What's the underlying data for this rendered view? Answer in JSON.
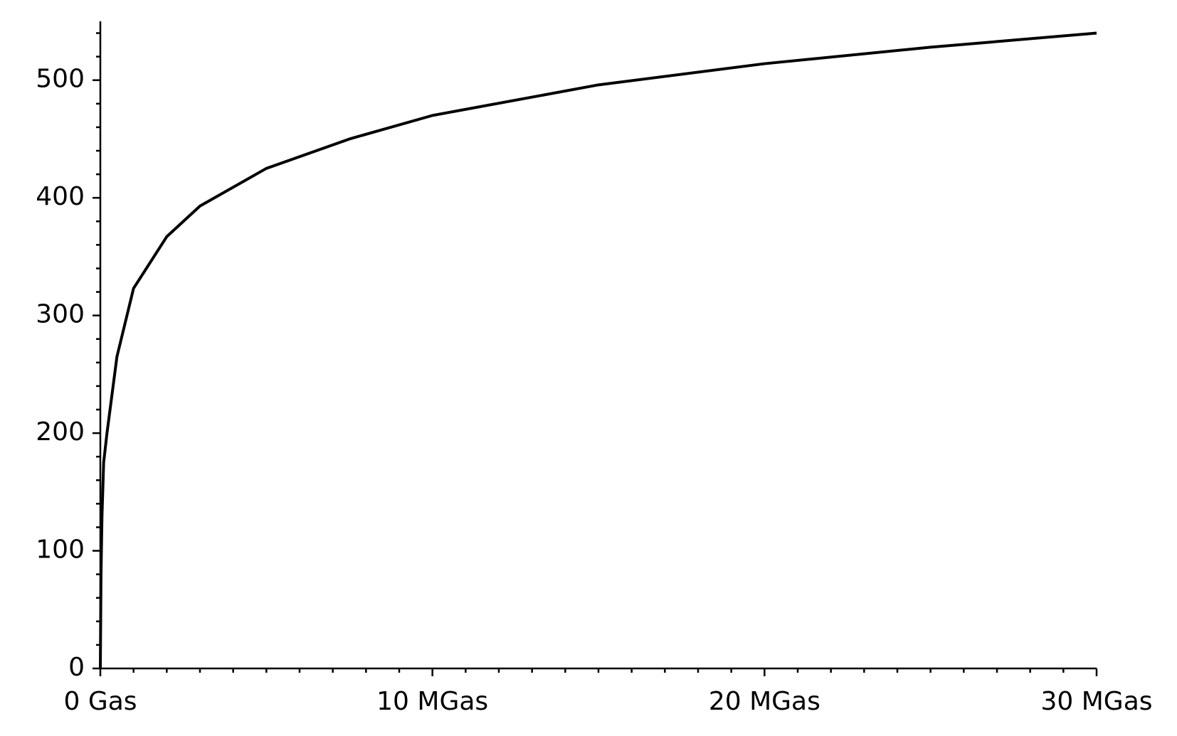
{
  "chart_data": {
    "type": "line",
    "x": [
      0,
      20000,
      50000,
      100000,
      200000,
      500000,
      1000000,
      2000000,
      3000000,
      5000000,
      7500000,
      10000000,
      15000000,
      20000000,
      25000000,
      30000000
    ],
    "series": [
      {
        "color": "#000000",
        "values": [
          0,
          80,
          130,
          175,
          200,
          265,
          323,
          367,
          393,
          425,
          450,
          470,
          496,
          514,
          528,
          540
        ]
      }
    ],
    "xlim": [
      0,
      30000000
    ],
    "xticks": [
      {
        "value": 0,
        "label": "0 Gas"
      },
      {
        "value": 10000000,
        "label": "10 MGas"
      },
      {
        "value": 20000000,
        "label": "20 MGas"
      },
      {
        "value": 30000000,
        "label": "30 MGas"
      }
    ],
    "xminorticks": [
      1000000,
      2000000,
      3000000,
      4000000,
      5000000,
      6000000,
      7000000,
      8000000,
      9000000,
      11000000,
      12000000,
      13000000,
      14000000,
      15000000,
      16000000,
      17000000,
      18000000,
      19000000,
      21000000,
      22000000,
      23000000,
      24000000,
      25000000,
      26000000,
      27000000,
      28000000,
      29000000
    ],
    "ylim": [
      0,
      550
    ],
    "yticks": [
      0,
      100,
      200,
      300,
      400,
      500
    ],
    "yminorticks": [
      20,
      40,
      60,
      80,
      120,
      140,
      160,
      180,
      220,
      240,
      260,
      280,
      320,
      340,
      360,
      380,
      420,
      440,
      460,
      480,
      520,
      540
    ],
    "grid": false
  }
}
